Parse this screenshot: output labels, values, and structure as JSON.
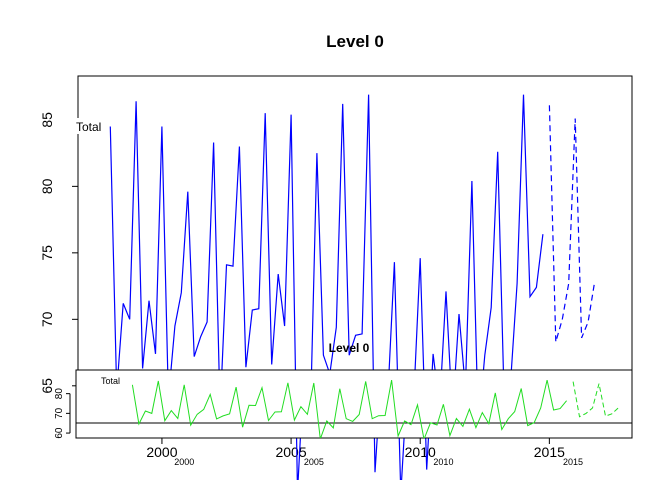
{
  "chart_data": [
    {
      "type": "line",
      "title": "Level 0",
      "series_label": "Total",
      "xlabel": "",
      "ylabel": "",
      "xlim": [
        1996.75,
        2018.2
      ],
      "ylim": [
        61.3,
        88.3
      ],
      "x_ticks": [
        "2000",
        "2005",
        "2010",
        "2015"
      ],
      "y_ticks": [
        "65",
        "70",
        "75",
        "80",
        "85"
      ],
      "observed_color": "#0000ff",
      "forecast_color": "#0000ff",
      "start": 1998.0,
      "frequency": 4,
      "observed": [
        84.5,
        64.6,
        71.2,
        70.0,
        86.4,
        66.3,
        71.4,
        67.4,
        84.5,
        64.0,
        69.5,
        72.0,
        79.6,
        67.2,
        68.7,
        69.8,
        83.3,
        63.0,
        74.1,
        74.0,
        83.0,
        66.4,
        70.7,
        70.8,
        85.5,
        66.6,
        73.4,
        69.5,
        85.4,
        57.0,
        66.2,
        62.6,
        82.5,
        67.3,
        65.9,
        69.4,
        86.2,
        67.3,
        68.8,
        68.9,
        86.9,
        58.5,
        66.1,
        64.3,
        74.3,
        56.9,
        65.2,
        64.1,
        74.6,
        58.7,
        67.4,
        63.4,
        72.1,
        62.8,
        70.4,
        64.8,
        80.4,
        61.8,
        67.3,
        70.9,
        82.6,
        63.8,
        65.3,
        72.7,
        86.9,
        71.7,
        72.4,
        76.4
      ],
      "forecast_start": 2015.0,
      "forecast": [
        86.1,
        68.3,
        70.0,
        72.7,
        85.1,
        68.6,
        69.8,
        72.8
      ]
    },
    {
      "type": "line",
      "title": "Level 0",
      "series_label": "Total",
      "xlabel": "",
      "ylabel": "",
      "xlim": [
        1996.75,
        2018.2
      ],
      "ylim": [
        57.5,
        92.0
      ],
      "x_ticks": [
        "2000",
        "2005",
        "2010",
        "2015"
      ],
      "y_ticks": [
        "60",
        "70",
        "80"
      ],
      "observed_color": "#22dd22",
      "forecast_color": "#22dd22",
      "start": 1998.0,
      "frequency": 4,
      "observed": [
        84.5,
        64.6,
        71.2,
        70.0,
        86.4,
        66.3,
        71.4,
        67.4,
        84.5,
        64.0,
        69.5,
        72.0,
        79.6,
        67.2,
        68.7,
        69.8,
        83.3,
        63.0,
        74.1,
        74.0,
        83.0,
        66.4,
        70.7,
        70.8,
        85.5,
        66.6,
        73.4,
        69.5,
        85.4,
        57.0,
        66.2,
        62.6,
        82.5,
        67.3,
        65.9,
        69.4,
        86.2,
        67.3,
        68.8,
        68.9,
        86.9,
        58.5,
        66.1,
        64.3,
        74.3,
        56.9,
        65.2,
        64.1,
        74.6,
        58.7,
        67.4,
        63.4,
        72.1,
        62.8,
        70.4,
        64.8,
        80.4,
        61.8,
        67.3,
        70.9,
        82.6,
        63.8,
        65.3,
        72.7,
        86.9,
        71.7,
        72.4,
        76.4
      ],
      "forecast_start": 2015.0,
      "forecast": [
        86.1,
        68.3,
        70.0,
        72.7,
        85.1,
        68.6,
        69.8,
        72.8
      ]
    }
  ]
}
